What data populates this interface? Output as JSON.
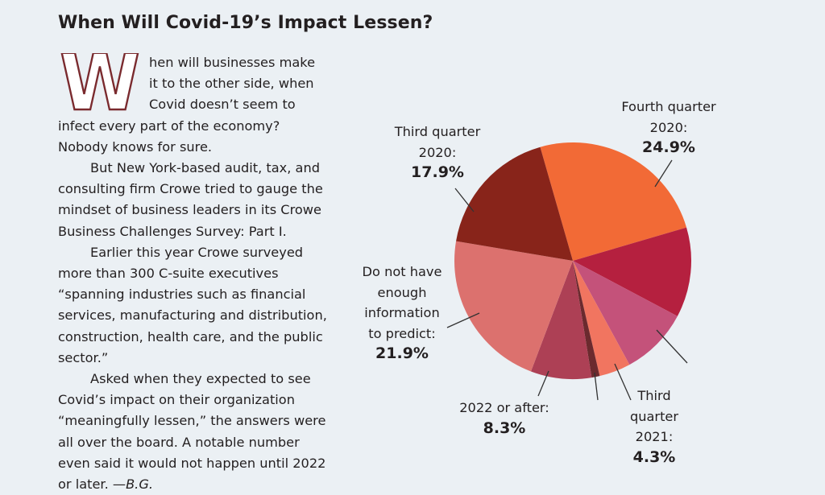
{
  "article": {
    "title": "When Will Covid-19’s Impact Lessen?",
    "drop_cap": "W",
    "paragraphs": [
      [
        "hen will businesses make",
        "it to the other side, when",
        "Covid doesn’t seem to",
        "infect every part of the economy?",
        "Nobody knows for sure."
      ],
      [
        "But New York-based audit, tax, and",
        "consulting firm Crowe tried to gauge the",
        "mindset of business leaders in its Crowe",
        "Business Challenges Survey: Part I."
      ],
      [
        "Earlier this year Crowe surveyed",
        "more than 300 C-suite executives",
        "“spanning industries such as financial",
        "services, manufacturing and distribution,",
        "construction, health care, and the public",
        "sector.”"
      ],
      [
        "Asked when they expected to see",
        "Covid’s impact on their organization",
        "“meaningfully lessen,” the answers were",
        "all over the board. A notable number",
        "even said it would not happen until 2022",
        "or later. —"
      ]
    ],
    "signature": "B.G.",
    "drop_cap_color": "#7a2a2e"
  },
  "chart_data": {
    "type": "pie",
    "title": "",
    "slices": [
      {
        "label_lines": [
          "Fourth quarter",
          "2020:"
        ],
        "value_label": "24.9%",
        "value": 24.9,
        "color": "#f26a36"
      },
      {
        "label_lines": [],
        "value_label": "",
        "value": 12.3,
        "color": "#b5203f"
      },
      {
        "label_lines": [],
        "value_label": "",
        "value": 9.3,
        "color": "#c4527a"
      },
      {
        "label_lines": [
          "Third",
          "quarter",
          "2021:"
        ],
        "value_label": "4.3%",
        "value": 4.3,
        "color": "#f17560"
      },
      {
        "label_lines": [],
        "value_label": "",
        "value": 1.1,
        "color": "#6b2a2e"
      },
      {
        "label_lines": [
          "2022 or after:"
        ],
        "value_label": "8.3%",
        "value": 8.3,
        "color": "#ad4055"
      },
      {
        "label_lines": [
          "Do not have",
          "enough",
          "information",
          "to predict:"
        ],
        "value_label": "21.9%",
        "value": 21.9,
        "color": "#dc716e"
      },
      {
        "label_lines": [
          "Third quarter",
          "2020:"
        ],
        "value_label": "17.9%",
        "value": 17.9,
        "color": "#88241a"
      }
    ]
  }
}
